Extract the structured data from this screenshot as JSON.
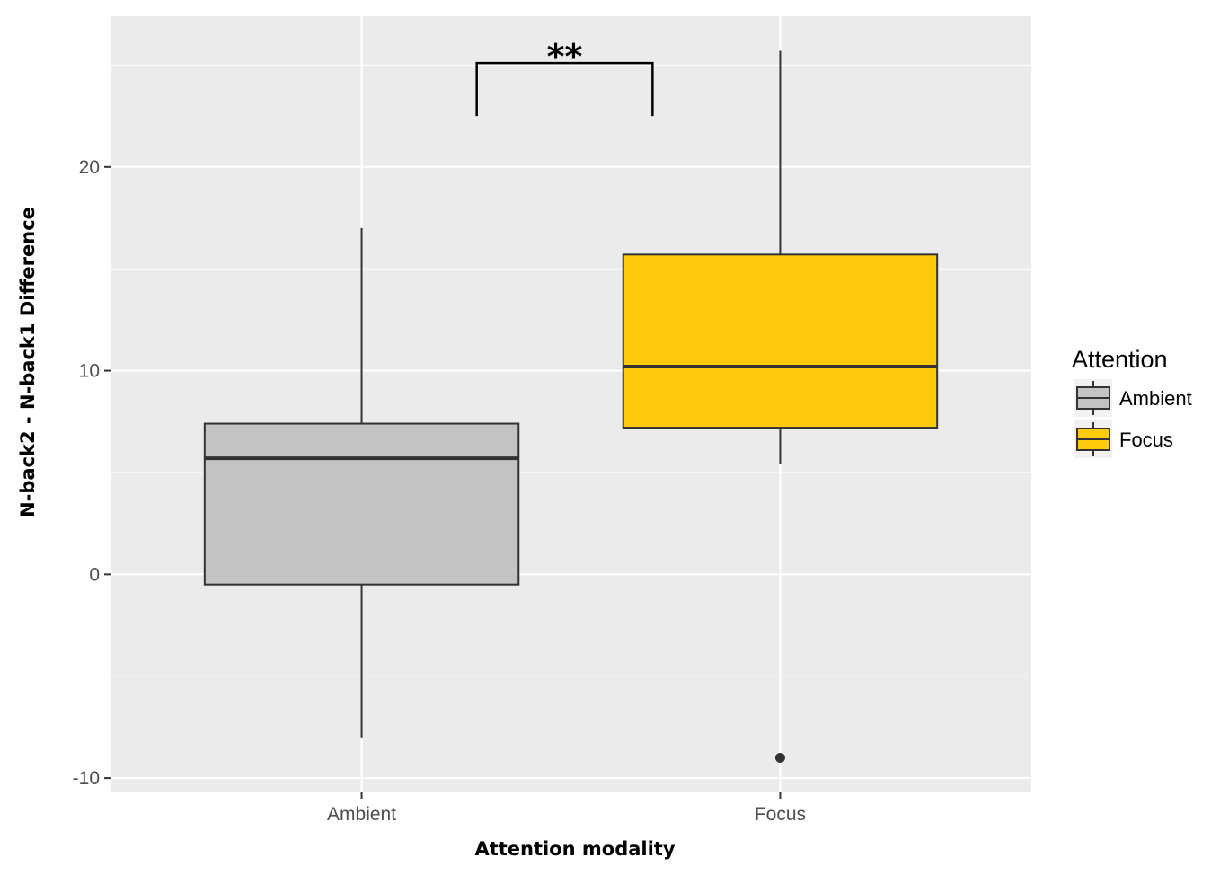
{
  "chart_data": {
    "type": "boxplot",
    "xlabel": "Attention modality",
    "ylabel": "N-back2 - N-back1 Difference",
    "categories": [
      "Ambient",
      "Focus"
    ],
    "ylim": [
      -10.7,
      27.4
    ],
    "yticks": [
      -10,
      0,
      10,
      20
    ],
    "grid": true,
    "boxes": [
      {
        "category": "Ambient",
        "lower_whisker": -8,
        "q1": -0.5,
        "median": 5.7,
        "q3": 7.4,
        "upper_whisker": 17,
        "outliers": [],
        "fill": "#C3C3C3"
      },
      {
        "category": "Focus",
        "lower_whisker": 5.4,
        "q1": 7.2,
        "median": 10.2,
        "q3": 15.7,
        "upper_whisker": 25.7,
        "outliers": [
          -9
        ],
        "fill": "#FFC90E"
      }
    ],
    "significance": {
      "label": "**",
      "between": [
        "Ambient",
        "Focus"
      ],
      "y": 25.1,
      "drop_to": 22.5
    },
    "legend": {
      "title": "Attention",
      "position": "right",
      "items": [
        {
          "label": "Ambient",
          "color": "#C3C3C3"
        },
        {
          "label": "Focus",
          "color": "#FFC90E"
        }
      ]
    }
  }
}
